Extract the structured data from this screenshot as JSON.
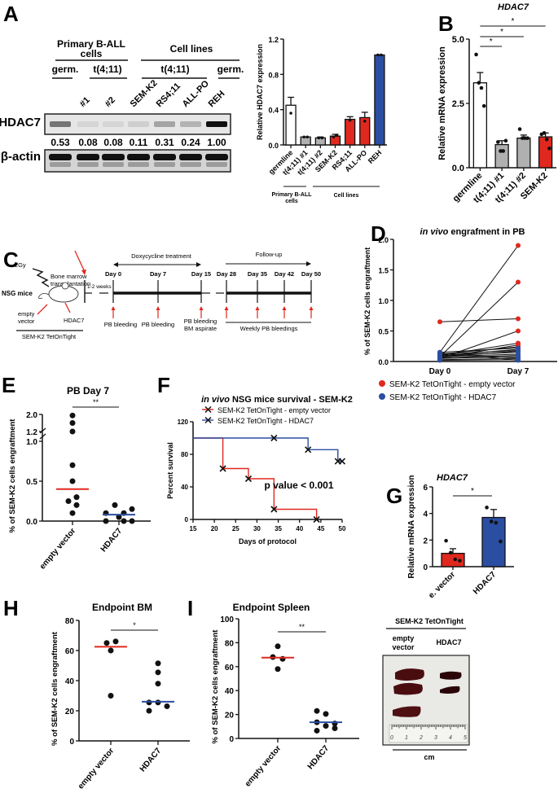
{
  "panels": {
    "A": {
      "label": "A",
      "blot": {
        "group_headers": [
          "Primary B-ALL",
          "cells",
          "Cell lines"
        ],
        "subgroup_headers": [
          "germ.",
          "t(4;11)",
          "t(4;11)",
          "germ."
        ],
        "lanes": [
          "#1",
          "#2",
          "SEM-K2",
          "RS4;11",
          "ALL-PO",
          "REH"
        ],
        "rows": [
          "HDAC7",
          "β-actin"
        ],
        "quant_values": [
          "0.53",
          "0.08",
          "0.08",
          "0.11",
          "0.31",
          "0.24",
          "1.00"
        ]
      }
    },
    "B": {
      "label": "B"
    },
    "C": {
      "label": "C",
      "texts": {
        "bmt1": "Bone marrow",
        "bmt2": "transplantation",
        "gy": "2Gy",
        "nsg": "NSG mice",
        "empty1": "empty",
        "empty2": "vector",
        "hdac7": "HDAC7",
        "semk2": "SEM-K2 TetOnTight",
        "weeks": "1-2 weeks",
        "dox": "Doxycycline treatment",
        "follow": "Follow-up",
        "days": [
          "Day 0",
          "Day 7",
          "Day 15",
          "Day 28",
          "Day 35",
          "Day 42",
          "Day 50"
        ],
        "pb1": "PB bleeding",
        "pb2": "PB bleeding",
        "pb3a": "PB bleeding",
        "pb3b": "BM aspirate",
        "weekly": "Weekly PB bleedings"
      }
    },
    "D": {
      "label": "D"
    },
    "E": {
      "label": "E"
    },
    "F": {
      "label": "F"
    },
    "G": {
      "label": "G"
    },
    "H": {
      "label": "H"
    },
    "I": {
      "label": "I",
      "photo": {
        "header": "SEM-K2 TetOnTight",
        "col1a": "empty",
        "col1b": "vector",
        "col2": "HDAC7",
        "ruler_ticks": [
          "0",
          "1",
          "2",
          "3",
          "4",
          "5"
        ],
        "unit": "cm"
      }
    }
  },
  "chart_data": [
    {
      "id": "A-bar",
      "type": "bar",
      "title": "",
      "ylabel": "Relative HDAC7 expression",
      "ylim": [
        0,
        1.2
      ],
      "yticks": [
        "0.0",
        "0.4",
        "0.8",
        "1.2"
      ],
      "categories": [
        "germline",
        "t(4;11) #1",
        "t(4;11) #2",
        "SEM-K2",
        "RS4;11",
        "ALL-PO",
        "REH"
      ],
      "values": [
        0.45,
        0.09,
        0.08,
        0.1,
        0.29,
        0.31,
        1.02
      ],
      "errors": [
        0.09,
        0.0,
        0.01,
        0.02,
        0.03,
        0.06,
        0.0
      ],
      "points": [
        [
          0.36
        ],
        [
          0.09,
          0.09
        ],
        [
          0.08,
          0.08
        ],
        [
          0.09,
          0.11
        ],
        [
          0.28
        ],
        [
          0.27
        ],
        [
          1.02,
          1.02
        ]
      ],
      "colors": [
        "#ffffff",
        "#b0b0b0",
        "#b0b0b0",
        "#e0281e",
        "#e0281e",
        "#e0281e",
        "#2a4ea2"
      ],
      "groups": [
        {
          "label1": "Primary B-ALL",
          "label2": "cells"
        },
        {
          "label1": "Cell lines",
          "label2": ""
        }
      ]
    },
    {
      "id": "B-bar",
      "type": "bar",
      "title": "HDAC7",
      "ylabel": "Relative mRNA expression",
      "ylim": [
        0,
        5
      ],
      "yticks": [
        "0.0",
        "2.5",
        "5.0"
      ],
      "categories": [
        "germline",
        "t(4;11) #1",
        "t(4;11) #2",
        "SEM-K2"
      ],
      "values": [
        3.3,
        0.9,
        1.15,
        1.2
      ],
      "errors": [
        0.4,
        0.15,
        0.12,
        0.15
      ],
      "points": [
        [
          4.4,
          3.3,
          3.1,
          2.4
        ],
        [
          1.0,
          0.65,
          0.65,
          1.05
        ],
        [
          1.5,
          1.15,
          1.15,
          1.15
        ],
        [
          1.3,
          1.35,
          1.1,
          0.75
        ]
      ],
      "colors": [
        "#ffffff",
        "#b0b0b0",
        "#b0b0b0",
        "#e0281e"
      ],
      "significance": [
        {
          "from": 0,
          "to": 1,
          "label": "*"
        },
        {
          "from": 0,
          "to": 2,
          "label": "*"
        },
        {
          "from": 0,
          "to": 3,
          "label": "*"
        }
      ]
    },
    {
      "id": "D-paired",
      "type": "line",
      "title_italic": "in vivo",
      "title_rest": " engrafment in PB",
      "ylabel": "% of SEM-K2 cells engraftment",
      "ylim": [
        0,
        2.0
      ],
      "yticks": [
        "0.0",
        "0.5",
        "1.0",
        "1.5",
        "2.0"
      ],
      "categories": [
        "Day 0",
        "Day 7"
      ],
      "series": [
        {
          "name": "SEM-K2 TetOnTight - empty vector",
          "color": "#e0281e",
          "pairs": [
            [
              0.65,
              0.7
            ],
            [
              0.15,
              1.9
            ],
            [
              0.08,
              1.3
            ],
            [
              0.05,
              0.5
            ],
            [
              0.1,
              0.3
            ],
            [
              0.06,
              0.27
            ],
            [
              0.12,
              0.24
            ],
            [
              0.09,
              0.2
            ]
          ]
        },
        {
          "name": "SEM-K2 TetOnTight - HDAC7",
          "color": "#2a4ea2",
          "pairs": [
            [
              0.15,
              0.22
            ],
            [
              0.12,
              0.18
            ],
            [
              0.1,
              0.15
            ],
            [
              0.08,
              0.12
            ],
            [
              0.06,
              0.1
            ],
            [
              0.05,
              0.08
            ],
            [
              0.03,
              0.05
            ],
            [
              0.02,
              0.03
            ],
            [
              0.14,
              0.02
            ],
            [
              0.11,
              0.06
            ],
            [
              0.07,
              0.17
            ]
          ]
        }
      ]
    },
    {
      "id": "E-dot",
      "type": "scatter",
      "title": "PB Day 7",
      "ylabel": "% of SEM-K2 cells engraftment",
      "yticks": [
        "0.0",
        "0.5",
        "1.0",
        "1.2",
        "2.0"
      ],
      "categories": [
        "empty vector",
        "HDAC7"
      ],
      "series": [
        {
          "name": "empty vector",
          "median": 0.4,
          "color": "#e0281e",
          "values": [
            1.95,
            1.6,
            1.2,
            0.7,
            0.5,
            0.3,
            0.25,
            0.2,
            0.1
          ]
        },
        {
          "name": "HDAC7",
          "median": 0.08,
          "color": "#2a4ea2",
          "values": [
            0.2,
            0.1,
            0.1,
            0.15,
            0.05,
            0.0,
            0.0,
            0.0
          ]
        }
      ],
      "significance": "**"
    },
    {
      "id": "F-survival",
      "type": "line",
      "title_italic": "in vivo",
      "title_rest": " NSG mice survival - SEM-K2",
      "xlabel": "Days of protocol",
      "ylabel": "Percent survival",
      "xlim": [
        15,
        50
      ],
      "ylim": [
        0,
        120
      ],
      "xticks": [
        "15",
        "20",
        "25",
        "30",
        "35",
        "40",
        "45",
        "50"
      ],
      "yticks": [
        "0",
        "40",
        "80",
        "120"
      ],
      "annotation": "p value < 0.001",
      "series": [
        {
          "name": "SEM-K2 TetOnTight - empty vector",
          "color": "#e0281e",
          "steps": [
            [
              15,
              100
            ],
            [
              22,
              62.5
            ],
            [
              28,
              50
            ],
            [
              34,
              12.5
            ],
            [
              44,
              0
            ]
          ],
          "marks": [
            [
              22,
              62.5
            ],
            [
              28,
              50
            ],
            [
              34,
              12.5
            ],
            [
              44,
              0
            ]
          ]
        },
        {
          "name": "SEM-K2 TetOnTight - HDAC7",
          "color": "#2a4ea2",
          "steps": [
            [
              15,
              100
            ],
            [
              42,
              85.7
            ],
            [
              49,
              71.4
            ],
            [
              50,
              71.4
            ]
          ],
          "marks": [
            [
              34,
              100
            ],
            [
              42,
              85.7
            ],
            [
              49,
              71.4
            ],
            [
              50,
              71.4
            ]
          ]
        }
      ]
    },
    {
      "id": "G-bar",
      "type": "bar",
      "title": "HDAC7",
      "ylabel": "Relative mRNA expression",
      "ylim": [
        0,
        6
      ],
      "yticks": [
        "0",
        "2",
        "4",
        "6"
      ],
      "categories": [
        "e. vector",
        "HDAC7"
      ],
      "values": [
        1.0,
        3.7
      ],
      "errors": [
        0.35,
        0.6
      ],
      "points": [
        [
          1.95,
          1.05,
          0.55,
          0.45
        ],
        [
          4.45,
          3.4,
          3.3,
          1.9
        ]
      ],
      "colors": [
        "#e0281e",
        "#2a4ea2"
      ],
      "significance": "*"
    },
    {
      "id": "H-dot",
      "type": "scatter",
      "title": "Endpoint BM",
      "ylabel": "% of SEM-K2 cells engraftment",
      "ylim": [
        0,
        80
      ],
      "yticks": [
        "0",
        "20",
        "40",
        "60",
        "80"
      ],
      "categories": [
        "empty vector",
        "HDAC7"
      ],
      "series": [
        {
          "name": "empty vector",
          "median": 62.5,
          "color": "#e0281e",
          "values": [
            65,
            66,
            60,
            30
          ]
        },
        {
          "name": "HDAC7",
          "median": 26,
          "color": "#2a4ea2",
          "values": [
            51.5,
            45.5,
            38,
            25.5,
            25.5,
            20,
            23
          ]
        }
      ],
      "significance": "*"
    },
    {
      "id": "I-dot",
      "type": "scatter",
      "title": "Endpoint Spleen",
      "ylabel": "% of SEM-K2 cells engraftment",
      "ylim": [
        0,
        100
      ],
      "yticks": [
        "0",
        "20",
        "40",
        "60",
        "80",
        "100"
      ],
      "categories": [
        "empty vector",
        "HDAC7"
      ],
      "series": [
        {
          "name": "empty vector",
          "median": 67.5,
          "color": "#e0281e",
          "values": [
            77,
            68,
            66.5,
            58
          ]
        },
        {
          "name": "HDAC7",
          "median": 13.5,
          "color": "#2a4ea2",
          "values": [
            23,
            20.5,
            13.5,
            12.5,
            10.5,
            8.5,
            6.5
          ]
        }
      ],
      "significance": "**"
    }
  ]
}
